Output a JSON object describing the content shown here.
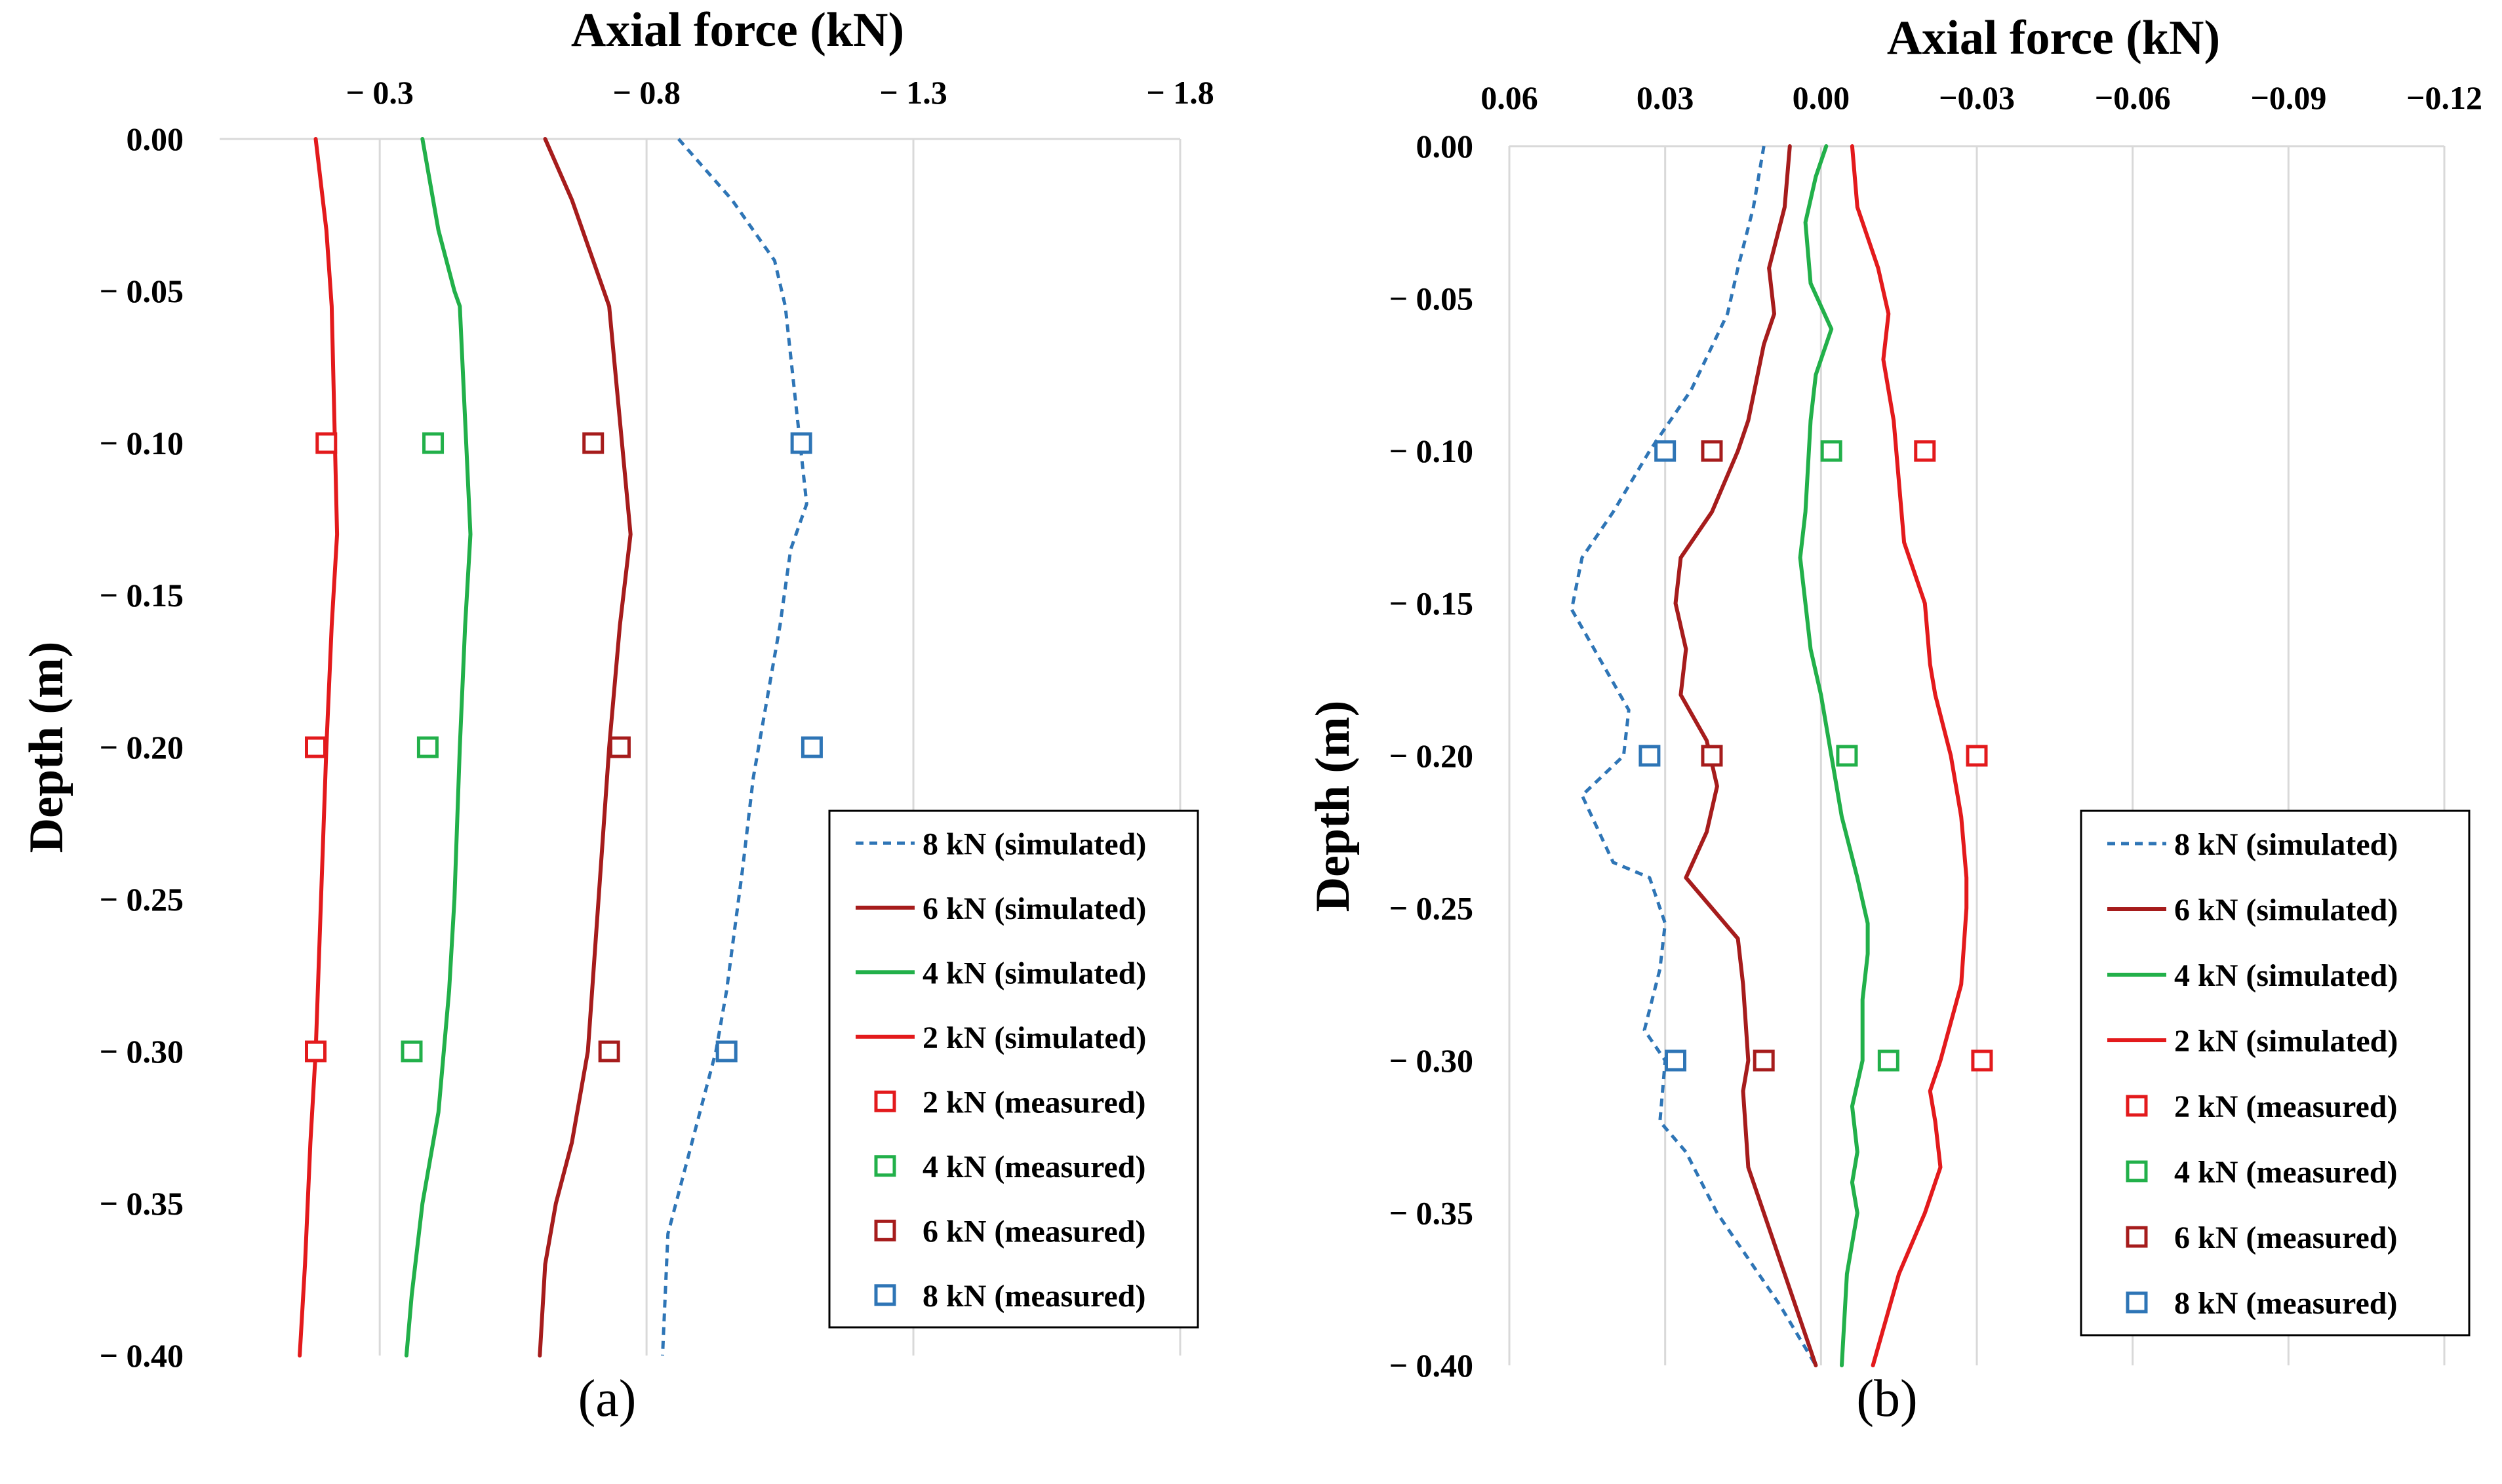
{
  "colors": {
    "sim_8kN": "#2E75B6",
    "sim_6kN": "#A61C1C",
    "sim_4kN": "#22B04A",
    "sim_2kN": "#E31A1C",
    "meas_2kN": "#E31A1C",
    "meas_4kN": "#22B04A",
    "meas_6kN": "#A61C1C",
    "meas_8kN": "#2E75B6",
    "grid": "#D9D9D9"
  },
  "chart_data": [
    {
      "type": "line",
      "panel_label": "(a)",
      "title": "Axial force (kN)",
      "ylabel": "Depth (m)",
      "xlim": [
        0.0,
        -1.8
      ],
      "ylim": [
        -0.4,
        0.0
      ],
      "xticks": [
        -0.3,
        -0.8,
        -1.3,
        -1.8
      ],
      "xtick_labels": [
        "− 0.3",
        "− 0.8",
        "− 1.3",
        "− 1.8"
      ],
      "yticks": [
        0.0,
        -0.05,
        -0.1,
        -0.15,
        -0.2,
        -0.25,
        -0.3,
        -0.35,
        -0.4
      ],
      "ytick_labels": [
        "0.00",
        "− 0.05",
        "− 0.10",
        "− 0.15",
        "− 0.20",
        "− 0.25",
        "− 0.30",
        "− 0.35",
        "− 0.40"
      ],
      "grid": "vertical",
      "series": [
        {
          "name": "8 kN (simulated)",
          "style": "dashed",
          "color_key": "sim_8kN",
          "x": [
            -0.86,
            -0.96,
            -1.04,
            -1.06,
            -1.1,
            -1.07,
            -1.05,
            -1.03,
            -1.0,
            -0.98,
            -0.95,
            -0.93,
            -0.9,
            -0.87,
            -0.84,
            -0.83
          ],
          "y": [
            0.0,
            -0.02,
            -0.04,
            -0.055,
            -0.12,
            -0.135,
            -0.16,
            -0.18,
            -0.21,
            -0.24,
            -0.28,
            -0.3,
            -0.32,
            -0.34,
            -0.36,
            -0.4
          ]
        },
        {
          "name": "6 kN (simulated)",
          "style": "solid",
          "color_key": "sim_6kN",
          "x": [
            -0.61,
            -0.66,
            -0.72,
            -0.73,
            -0.77,
            -0.75,
            -0.73,
            -0.71,
            -0.69,
            -0.66,
            -0.63,
            -0.61,
            -0.6
          ],
          "y": [
            0.0,
            -0.02,
            -0.05,
            -0.055,
            -0.13,
            -0.16,
            -0.2,
            -0.25,
            -0.3,
            -0.33,
            -0.35,
            -0.37,
            -0.4
          ]
        },
        {
          "name": "4 kN (simulated)",
          "style": "solid",
          "color_key": "sim_4kN",
          "x": [
            -0.38,
            -0.41,
            -0.44,
            -0.45,
            -0.47,
            -0.46,
            -0.45,
            -0.44,
            -0.43,
            -0.41,
            -0.38,
            -0.36,
            -0.35
          ],
          "y": [
            0.0,
            -0.03,
            -0.05,
            -0.055,
            -0.13,
            -0.16,
            -0.2,
            -0.25,
            -0.28,
            -0.32,
            -0.35,
            -0.38,
            -0.4
          ]
        },
        {
          "name": "2 kN (simulated)",
          "style": "solid",
          "color_key": "sim_2kN",
          "x": [
            -0.18,
            -0.2,
            -0.21,
            -0.22,
            -0.21,
            -0.2,
            -0.19,
            -0.18,
            -0.17,
            -0.16,
            -0.15
          ],
          "y": [
            0.0,
            -0.03,
            -0.055,
            -0.13,
            -0.16,
            -0.2,
            -0.25,
            -0.3,
            -0.33,
            -0.37,
            -0.4
          ]
        }
      ],
      "markers": [
        {
          "name": "2 kN (measured)",
          "color_key": "meas_2kN",
          "x": [
            -0.2,
            -0.18,
            -0.18
          ],
          "y": [
            -0.1,
            -0.2,
            -0.3
          ]
        },
        {
          "name": "4 kN (measured)",
          "color_key": "meas_4kN",
          "x": [
            -0.4,
            -0.39,
            -0.36
          ],
          "y": [
            -0.1,
            -0.2,
            -0.3
          ]
        },
        {
          "name": "6 kN (measured)",
          "color_key": "meas_6kN",
          "x": [
            -0.7,
            -0.75,
            -0.73
          ],
          "y": [
            -0.1,
            -0.2,
            -0.3
          ]
        },
        {
          "name": "8 kN (measured)",
          "color_key": "meas_8kN",
          "x": [
            -1.09,
            -1.11,
            -0.95
          ],
          "y": [
            -0.1,
            -0.2,
            -0.3
          ]
        }
      ],
      "legend": [
        {
          "label": "8 kN (simulated)",
          "kind": "dashed",
          "color_key": "sim_8kN"
        },
        {
          "label": "6 kN (simulated)",
          "kind": "line",
          "color_key": "sim_6kN"
        },
        {
          "label": "4 kN (simulated)",
          "kind": "line",
          "color_key": "sim_4kN"
        },
        {
          "label": "2 kN (simulated)",
          "kind": "line",
          "color_key": "sim_2kN"
        },
        {
          "label": "2 kN (measured)",
          "kind": "marker",
          "color_key": "meas_2kN"
        },
        {
          "label": "4 kN (measured)",
          "kind": "marker",
          "color_key": "meas_4kN"
        },
        {
          "label": "6 kN (measured)",
          "kind": "marker",
          "color_key": "meas_6kN"
        },
        {
          "label": "8 kN (measured)",
          "kind": "marker",
          "color_key": "meas_8kN"
        }
      ],
      "legend_position": "bottom-right"
    },
    {
      "type": "line",
      "panel_label": "(b)",
      "title": "Axial force (kN)",
      "ylabel": "Depth (m)",
      "xlim": [
        0.06,
        -0.12
      ],
      "ylim": [
        -0.4,
        0.0
      ],
      "xticks": [
        0.06,
        0.03,
        0.0,
        -0.03,
        -0.06,
        -0.09,
        -0.12
      ],
      "xtick_labels": [
        "0.06",
        "0.03",
        "0.00",
        "−0.03",
        "−0.06",
        "−0.09",
        "−0.12"
      ],
      "yticks": [
        0.0,
        -0.05,
        -0.1,
        -0.15,
        -0.2,
        -0.25,
        -0.3,
        -0.35,
        -0.4
      ],
      "ytick_labels": [
        "0.00",
        "− 0.05",
        "− 0.10",
        "− 0.15",
        "− 0.20",
        "− 0.25",
        "− 0.30",
        "− 0.35",
        "− 0.40"
      ],
      "grid": "vertical",
      "series": [
        {
          "name": "8 kN (simulated)",
          "style": "dashed",
          "color_key": "sim_8kN",
          "x": [
            0.011,
            0.013,
            0.016,
            0.018,
            0.025,
            0.033,
            0.04,
            0.046,
            0.048,
            0.042,
            0.037,
            0.038,
            0.046,
            0.04,
            0.033,
            0.03,
            0.031,
            0.034,
            0.03,
            0.031,
            0.026,
            0.023,
            0.02,
            0.016,
            0.008,
            0.001
          ],
          "y": [
            0.0,
            -0.02,
            -0.04,
            -0.055,
            -0.08,
            -0.1,
            -0.12,
            -0.135,
            -0.152,
            -0.17,
            -0.185,
            -0.2,
            -0.213,
            -0.235,
            -0.24,
            -0.255,
            -0.27,
            -0.29,
            -0.3,
            -0.32,
            -0.33,
            -0.34,
            -0.35,
            -0.36,
            -0.38,
            -0.4
          ]
        },
        {
          "name": "6 kN (simulated)",
          "style": "solid",
          "color_key": "sim_6kN",
          "x": [
            0.006,
            0.007,
            0.01,
            0.009,
            0.011,
            0.014,
            0.016,
            0.021,
            0.027,
            0.028,
            0.026,
            0.027,
            0.022,
            0.02,
            0.022,
            0.026,
            0.021,
            0.016,
            0.015,
            0.014,
            0.015,
            0.014,
            0.011,
            0.007,
            0.001
          ],
          "y": [
            0.0,
            -0.02,
            -0.04,
            -0.055,
            -0.065,
            -0.09,
            -0.1,
            -0.12,
            -0.135,
            -0.15,
            -0.165,
            -0.18,
            -0.195,
            -0.21,
            -0.225,
            -0.24,
            -0.25,
            -0.26,
            -0.275,
            -0.3,
            -0.31,
            -0.335,
            -0.35,
            -0.37,
            -0.4
          ]
        },
        {
          "name": "4 kN (simulated)",
          "style": "solid",
          "color_key": "sim_4kN",
          "x": [
            -0.001,
            0.001,
            0.003,
            0.002,
            -0.002,
            0.001,
            0.002,
            0.003,
            0.004,
            0.003,
            0.002,
            0.0,
            -0.002,
            -0.004,
            -0.007,
            -0.009,
            -0.009,
            -0.008,
            -0.008,
            -0.006,
            -0.007,
            -0.006,
            -0.007,
            -0.005,
            -0.004
          ],
          "y": [
            0.0,
            -0.01,
            -0.025,
            -0.045,
            -0.06,
            -0.075,
            -0.09,
            -0.12,
            -0.135,
            -0.15,
            -0.165,
            -0.18,
            -0.2,
            -0.22,
            -0.24,
            -0.255,
            -0.265,
            -0.28,
            -0.3,
            -0.315,
            -0.33,
            -0.34,
            -0.35,
            -0.37,
            -0.4
          ]
        },
        {
          "name": "2 kN (simulated)",
          "style": "solid",
          "color_key": "sim_2kN",
          "x": [
            -0.006,
            -0.007,
            -0.011,
            -0.013,
            -0.012,
            -0.014,
            -0.016,
            -0.02,
            -0.021,
            -0.022,
            -0.025,
            -0.027,
            -0.028,
            -0.028,
            -0.027,
            -0.023,
            -0.021,
            -0.022,
            -0.023,
            -0.02,
            -0.015,
            -0.01
          ],
          "y": [
            0.0,
            -0.02,
            -0.04,
            -0.055,
            -0.07,
            -0.09,
            -0.13,
            -0.15,
            -0.17,
            -0.18,
            -0.2,
            -0.22,
            -0.24,
            -0.25,
            -0.275,
            -0.3,
            -0.31,
            -0.32,
            -0.335,
            -0.35,
            -0.37,
            -0.4
          ]
        }
      ],
      "markers": [
        {
          "name": "2 kN (measured)",
          "color_key": "meas_2kN",
          "x": [
            -0.02,
            -0.03,
            -0.031
          ],
          "y": [
            -0.1,
            -0.2,
            -0.3
          ]
        },
        {
          "name": "4 kN (measured)",
          "color_key": "meas_4kN",
          "x": [
            -0.002,
            -0.005,
            -0.013
          ],
          "y": [
            -0.1,
            -0.2,
            -0.3
          ]
        },
        {
          "name": "6 kN (measured)",
          "color_key": "meas_6kN",
          "x": [
            0.021,
            0.021,
            0.011
          ],
          "y": [
            -0.1,
            -0.2,
            -0.3
          ]
        },
        {
          "name": "8 kN (measured)",
          "color_key": "meas_8kN",
          "x": [
            0.03,
            0.033,
            0.028
          ],
          "y": [
            -0.1,
            -0.2,
            -0.3
          ]
        }
      ],
      "legend": [
        {
          "label": "8 kN (simulated)",
          "kind": "dashed",
          "color_key": "sim_8kN"
        },
        {
          "label": "6 kN (simulated)",
          "kind": "line",
          "color_key": "sim_6kN"
        },
        {
          "label": "4 kN (simulated)",
          "kind": "line",
          "color_key": "sim_4kN"
        },
        {
          "label": "2 kN (simulated)",
          "kind": "line",
          "color_key": "sim_2kN"
        },
        {
          "label": "2 kN (measured)",
          "kind": "marker",
          "color_key": "meas_2kN"
        },
        {
          "label": "4 kN (measured)",
          "kind": "marker",
          "color_key": "meas_4kN"
        },
        {
          "label": "6 kN (measured)",
          "kind": "marker",
          "color_key": "meas_6kN"
        },
        {
          "label": "8 kN (measured)",
          "kind": "marker",
          "color_key": "meas_8kN"
        }
      ],
      "legend_position": "bottom-right"
    }
  ]
}
